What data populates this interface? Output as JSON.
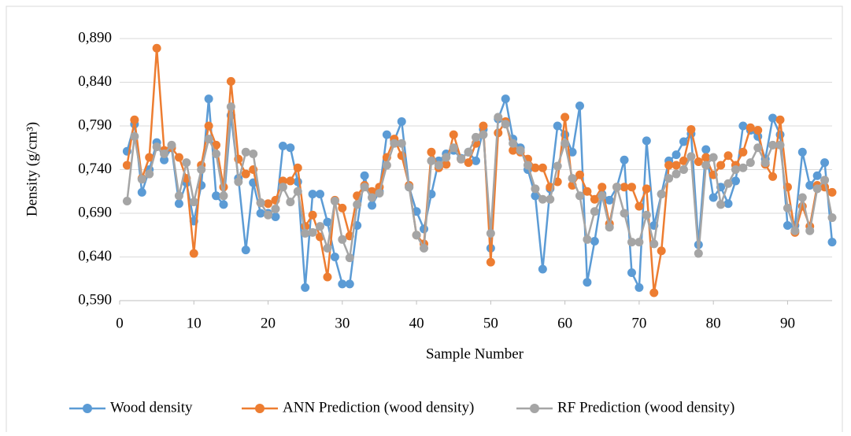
{
  "chart_data": {
    "type": "line",
    "y_label": "Density (g/cm³)",
    "x_label": "Sample Number",
    "x": [
      1,
      2,
      3,
      4,
      5,
      6,
      7,
      8,
      9,
      10,
      11,
      12,
      13,
      14,
      15,
      16,
      17,
      18,
      19,
      20,
      21,
      22,
      23,
      24,
      25,
      26,
      27,
      28,
      29,
      30,
      31,
      32,
      33,
      34,
      35,
      36,
      37,
      38,
      39,
      40,
      41,
      42,
      43,
      44,
      45,
      46,
      47,
      48,
      49,
      50,
      51,
      52,
      53,
      54,
      55,
      56,
      57,
      58,
      59,
      60,
      61,
      62,
      63,
      64,
      65,
      66,
      67,
      68,
      69,
      70,
      71,
      72,
      73,
      74,
      75,
      76,
      77,
      78,
      79,
      80,
      81,
      82,
      83,
      84,
      85,
      86,
      87,
      88,
      89,
      90,
      91,
      92,
      93,
      94,
      95,
      96
    ],
    "series": [
      {
        "name": "Wood density",
        "color": "#5b9bd5",
        "values": [
          0.761,
          0.792,
          0.714,
          0.74,
          0.771,
          0.751,
          0.765,
          0.701,
          0.725,
          0.681,
          0.722,
          0.821,
          0.71,
          0.7,
          0.802,
          0.73,
          0.648,
          0.725,
          0.69,
          0.69,
          0.686,
          0.767,
          0.765,
          0.726,
          0.605,
          0.712,
          0.712,
          0.68,
          0.64,
          0.609,
          0.609,
          0.676,
          0.733,
          0.699,
          0.715,
          0.78,
          0.773,
          0.795,
          0.72,
          0.692,
          0.672,
          0.712,
          0.75,
          0.758,
          0.762,
          0.753,
          0.76,
          0.75,
          0.786,
          0.65,
          0.798,
          0.821,
          0.775,
          0.765,
          0.74,
          0.71,
          0.626,
          0.718,
          0.79,
          0.78,
          0.76,
          0.813,
          0.611,
          0.658,
          0.712,
          0.705,
          0.72,
          0.751,
          0.622,
          0.605,
          0.773,
          0.676,
          0.712,
          0.75,
          0.757,
          0.772,
          0.781,
          0.654,
          0.763,
          0.708,
          0.72,
          0.701,
          0.727,
          0.79,
          0.785,
          0.778,
          0.752,
          0.799,
          0.78,
          0.676,
          0.676,
          0.76,
          0.722,
          0.733,
          0.748,
          0.657
        ]
      },
      {
        "name": "ANN Prediction (wood density)",
        "color": "#ed7d31",
        "values": [
          0.745,
          0.797,
          0.73,
          0.754,
          0.879,
          0.762,
          0.765,
          0.754,
          0.73,
          0.644,
          0.745,
          0.79,
          0.768,
          0.72,
          0.841,
          0.752,
          0.735,
          0.74,
          0.702,
          0.701,
          0.705,
          0.727,
          0.727,
          0.742,
          0.675,
          0.688,
          0.663,
          0.617,
          0.705,
          0.696,
          0.664,
          0.71,
          0.722,
          0.715,
          0.72,
          0.754,
          0.775,
          0.756,
          0.722,
          0.665,
          0.655,
          0.76,
          0.742,
          0.746,
          0.78,
          0.752,
          0.748,
          0.77,
          0.79,
          0.634,
          0.782,
          0.795,
          0.762,
          0.76,
          0.752,
          0.742,
          0.742,
          0.72,
          0.726,
          0.8,
          0.722,
          0.734,
          0.715,
          0.706,
          0.72,
          0.678,
          0.72,
          0.72,
          0.72,
          0.698,
          0.718,
          0.599,
          0.647,
          0.745,
          0.745,
          0.75,
          0.786,
          0.749,
          0.754,
          0.734,
          0.745,
          0.756,
          0.745,
          0.76,
          0.788,
          0.785,
          0.746,
          0.732,
          0.797,
          0.72,
          0.668,
          0.698,
          0.675,
          0.722,
          0.72,
          0.714
        ]
      },
      {
        "name": "RF Prediction (wood density)",
        "color": "#a5a5a5",
        "values": [
          0.704,
          0.778,
          0.729,
          0.735,
          0.766,
          0.758,
          0.768,
          0.71,
          0.748,
          0.703,
          0.74,
          0.775,
          0.758,
          0.71,
          0.812,
          0.726,
          0.76,
          0.758,
          0.702,
          0.688,
          0.695,
          0.72,
          0.703,
          0.715,
          0.667,
          0.668,
          0.675,
          0.65,
          0.704,
          0.66,
          0.639,
          0.7,
          0.72,
          0.708,
          0.713,
          0.745,
          0.77,
          0.77,
          0.72,
          0.665,
          0.65,
          0.75,
          0.745,
          0.754,
          0.765,
          0.752,
          0.76,
          0.777,
          0.78,
          0.667,
          0.8,
          0.792,
          0.77,
          0.762,
          0.745,
          0.718,
          0.706,
          0.706,
          0.744,
          0.77,
          0.73,
          0.71,
          0.66,
          0.692,
          0.71,
          0.674,
          0.72,
          0.69,
          0.657,
          0.657,
          0.688,
          0.655,
          0.712,
          0.73,
          0.735,
          0.74,
          0.755,
          0.644,
          0.745,
          0.754,
          0.7,
          0.724,
          0.74,
          0.742,
          0.748,
          0.765,
          0.748,
          0.768,
          0.768,
          0.696,
          0.67,
          0.708,
          0.67,
          0.718,
          0.728,
          0.685
        ]
      }
    ],
    "xlim": [
      0,
      96
    ],
    "xticks": [
      0,
      10,
      20,
      30,
      40,
      50,
      60,
      70,
      80,
      90
    ],
    "ylim": [
      0.59,
      0.89
    ],
    "yticks": [
      {
        "value": 0.59,
        "label": "0,590"
      },
      {
        "value": 0.64,
        "label": "0,640"
      },
      {
        "value": 0.69,
        "label": "0,690"
      },
      {
        "value": 0.74,
        "label": "0,740"
      },
      {
        "value": 0.79,
        "label": "0,790"
      },
      {
        "value": 0.84,
        "label": "0,840"
      },
      {
        "value": 0.89,
        "label": "0,890"
      }
    ],
    "grid": true,
    "legend": "bottom"
  }
}
